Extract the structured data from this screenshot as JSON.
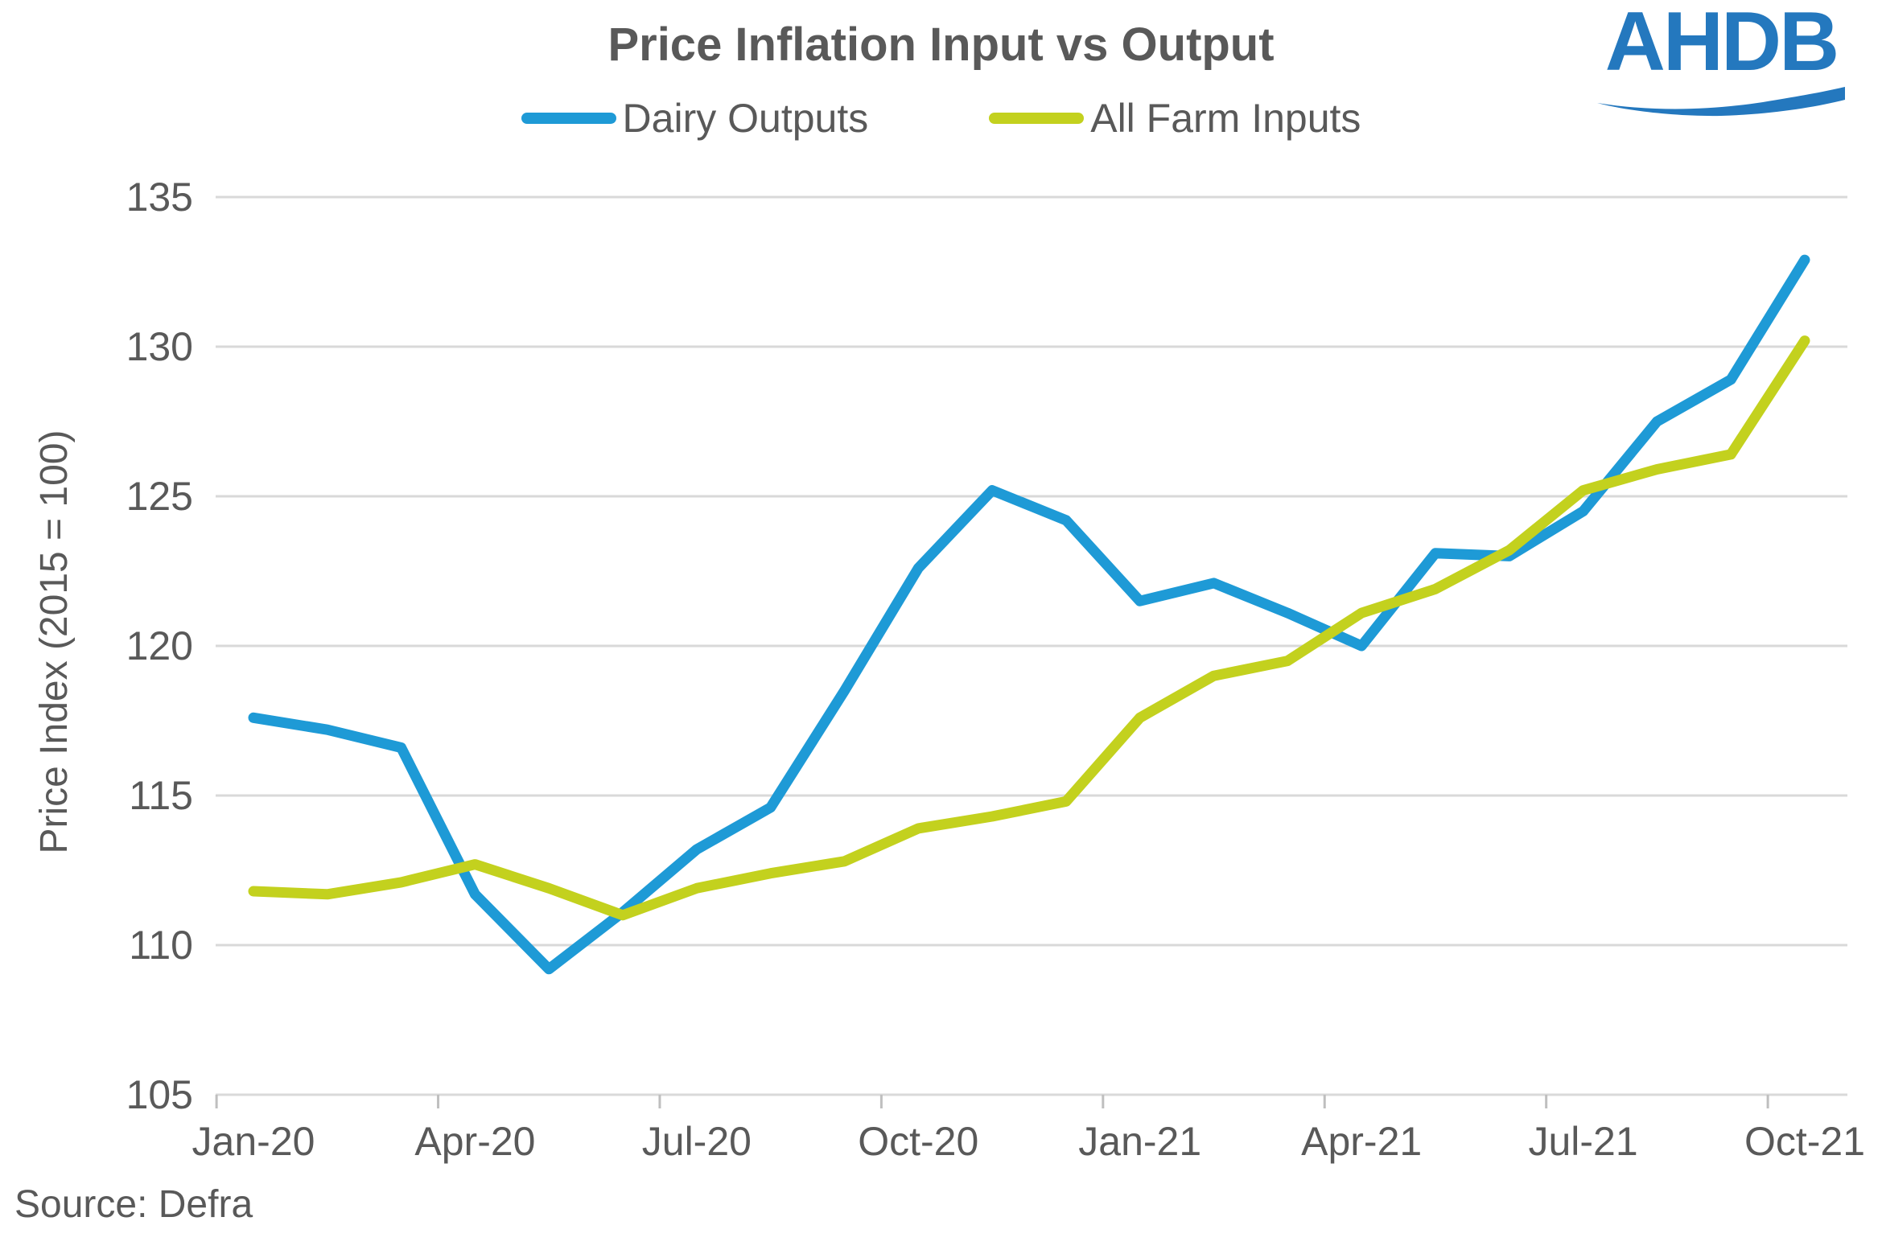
{
  "header": {
    "title": "Price Inflation Input vs Output",
    "logo_text": "AHDB"
  },
  "legend": [
    {
      "label": "Dairy Outputs",
      "color": "#1E9AD6"
    },
    {
      "label": "All Farm Inputs",
      "color": "#C3D11E"
    }
  ],
  "footer": {
    "source_label": "Source: Defra"
  },
  "colors": {
    "accent_blue": "#1E9AD6",
    "accent_yellow_green": "#C3D11E",
    "logo_blue": "#2478BE",
    "text_gray": "#595959",
    "gridline_gray": "#D9D9D9",
    "tick_gray": "#BFBFBF"
  },
  "chart_data": {
    "type": "line",
    "title": "Price Inflation Input vs Output",
    "xlabel": "",
    "ylabel": "Price Index (2015 = 100)",
    "ylim": [
      105,
      135
    ],
    "ytick_step": 5,
    "ytick_labels": [
      "105",
      "110",
      "115",
      "120",
      "125",
      "130",
      "135"
    ],
    "grid": "horizontal",
    "legend_position": "top",
    "x": [
      "Jan-20",
      "Feb-20",
      "Mar-20",
      "Apr-20",
      "May-20",
      "Jun-20",
      "Jul-20",
      "Aug-20",
      "Sep-20",
      "Oct-20",
      "Nov-20",
      "Dec-20",
      "Jan-21",
      "Feb-21",
      "Mar-21",
      "Apr-21",
      "May-21",
      "Jun-21",
      "Jul-21",
      "Aug-21",
      "Sep-21",
      "Oct-21"
    ],
    "xtick_labels": [
      "Jan-20",
      "Apr-20",
      "Jul-20",
      "Oct-20",
      "Jan-21",
      "Apr-21",
      "Jul-21",
      "Oct-21"
    ],
    "series": [
      {
        "name": "Dairy Outputs",
        "color": "#1E9AD6",
        "values": [
          117.6,
          117.2,
          116.6,
          111.7,
          109.2,
          111.1,
          113.2,
          114.6,
          118.5,
          122.6,
          125.2,
          124.2,
          121.5,
          122.1,
          121.1,
          120.0,
          123.1,
          123.0,
          124.5,
          127.5,
          128.9,
          132.9
        ]
      },
      {
        "name": "All Farm Inputs",
        "color": "#C3D11E",
        "values": [
          111.8,
          111.7,
          112.1,
          112.7,
          111.9,
          111.0,
          111.9,
          112.4,
          112.8,
          113.9,
          114.3,
          114.8,
          117.6,
          119.0,
          119.5,
          121.1,
          121.9,
          123.2,
          125.2,
          125.9,
          126.4,
          130.2
        ]
      }
    ]
  }
}
